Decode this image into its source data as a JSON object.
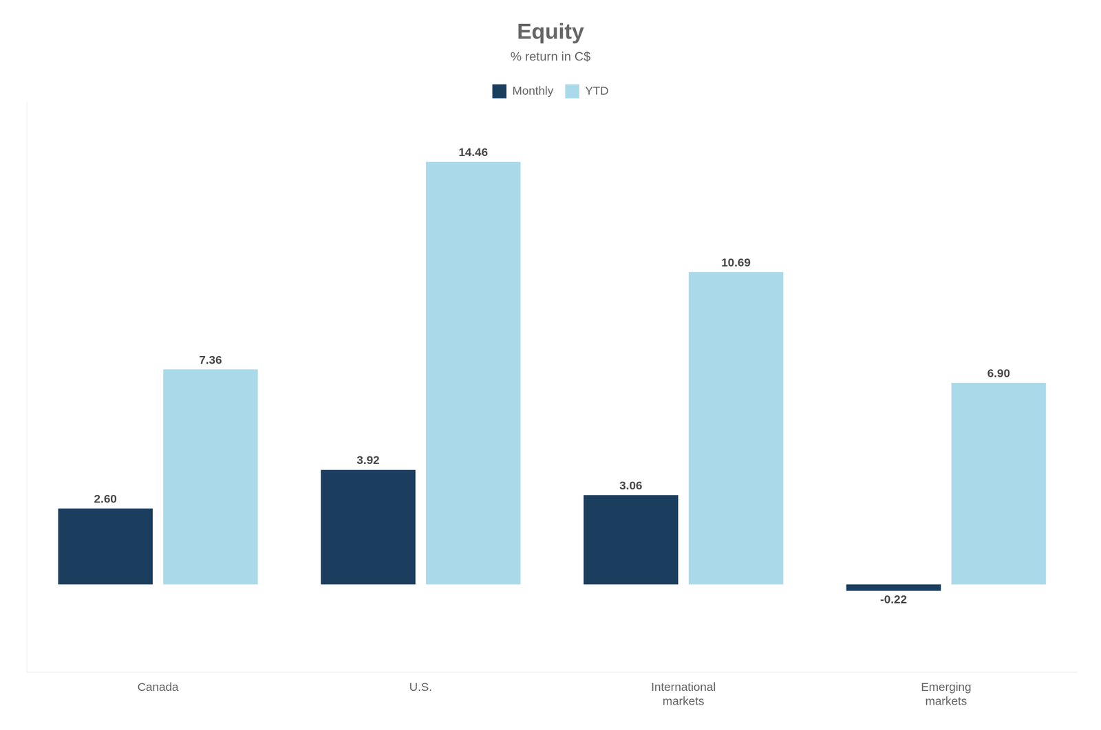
{
  "chart_data": {
    "type": "bar",
    "title": "Equity",
    "subtitle": "% return in C$",
    "categories": [
      "Canada",
      "U.S.",
      "International\nmarkets",
      "Emerging\nmarkets"
    ],
    "series": [
      {
        "name": "Monthly",
        "color": "#1b3d5e",
        "values": [
          2.6,
          3.92,
          3.06,
          -0.22
        ],
        "value_labels": [
          "2.60",
          "3.92",
          "3.06",
          "-0.22"
        ]
      },
      {
        "name": "YTD",
        "color": "#aadaea",
        "values": [
          7.36,
          14.46,
          10.69,
          6.9
        ],
        "value_labels": [
          "7.36",
          "14.46",
          "10.69",
          "6.90"
        ]
      }
    ],
    "ylim": [
      -3.0,
      16.5
    ],
    "grid": false,
    "legend": "top",
    "data_labels": true,
    "tick_labels": "x"
  }
}
